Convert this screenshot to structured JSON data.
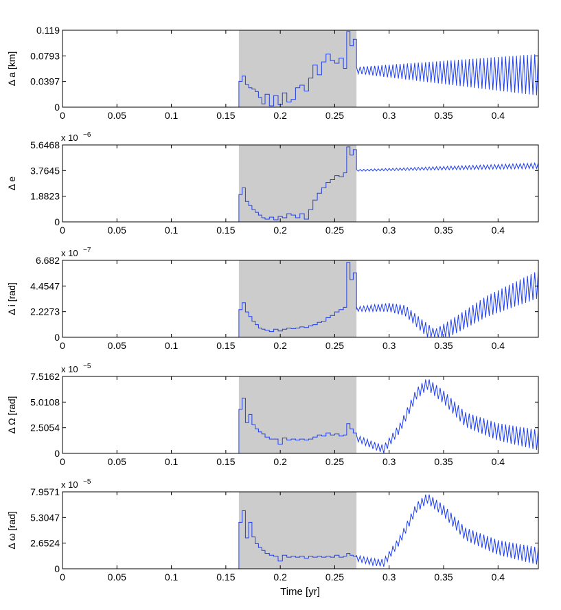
{
  "figure": {
    "xlabel": "Time [yr]",
    "shaded_interval": [
      0.162,
      0.27
    ],
    "shade_color": "#cccccc",
    "line_color": "#1f3ff0",
    "xlim": [
      0,
      0.437
    ],
    "xticks": [
      0,
      0.05,
      0.1,
      0.15,
      0.2,
      0.25,
      0.3,
      0.35,
      0.4
    ],
    "xtick_labels": [
      "0",
      "0.05",
      "0.1",
      "0.15",
      "0.2",
      "0.25",
      "0.3",
      "0.35",
      "0.4"
    ]
  },
  "chart_data": [
    {
      "type": "line",
      "ylabel": "Δ a [km]",
      "exponent_label": "",
      "ylim": [
        0,
        0.119
      ],
      "yticks": [
        0,
        0.0397,
        0.0793,
        0.119
      ],
      "ytick_labels": [
        "0",
        "0.0397",
        "0.0793",
        "0.119"
      ],
      "x": [
        0.162,
        0.165,
        0.168,
        0.171,
        0.174,
        0.177,
        0.18,
        0.183,
        0.186,
        0.19,
        0.194,
        0.198,
        0.202,
        0.206,
        0.21,
        0.214,
        0.218,
        0.222,
        0.226,
        0.23,
        0.234,
        0.238,
        0.242,
        0.246,
        0.25,
        0.254,
        0.258,
        0.261,
        0.264,
        0.267,
        0.27
      ],
      "y": [
        0.04,
        0.048,
        0.035,
        0.03,
        0.028,
        0.024,
        0.015,
        0.005,
        0.02,
        0.002,
        0.018,
        0.004,
        0.022,
        0.008,
        0.012,
        0.03,
        0.034,
        0.025,
        0.045,
        0.065,
        0.05,
        0.07,
        0.082,
        0.072,
        0.068,
        0.076,
        0.06,
        0.117,
        0.095,
        0.105,
        0.08
      ],
      "oscillation": {
        "x_start": 0.27,
        "x_end": 0.437,
        "center_start": 0.057,
        "center_end": 0.05,
        "amp_start": 0.005,
        "amp_end": 0.032,
        "cycles": 50
      }
    },
    {
      "type": "line",
      "ylabel": "Δ e",
      "exponent_label": "x 10",
      "exponent_power": "−6",
      "ylim": [
        0,
        5.6468
      ],
      "yticks": [
        0,
        1.8823,
        3.7645,
        5.6468
      ],
      "ytick_labels": [
        "0",
        "1.8823",
        "3.7645",
        "5.6468"
      ],
      "x": [
        0.162,
        0.165,
        0.168,
        0.171,
        0.174,
        0.177,
        0.18,
        0.183,
        0.186,
        0.19,
        0.194,
        0.198,
        0.202,
        0.206,
        0.21,
        0.214,
        0.218,
        0.222,
        0.226,
        0.23,
        0.234,
        0.238,
        0.242,
        0.246,
        0.25,
        0.254,
        0.258,
        0.261,
        0.264,
        0.267,
        0.27
      ],
      "y": [
        2.0,
        2.5,
        1.5,
        1.2,
        0.9,
        0.7,
        0.5,
        0.3,
        0.2,
        0.35,
        0.15,
        0.4,
        0.3,
        0.6,
        0.5,
        0.3,
        0.6,
        0.2,
        0.9,
        1.6,
        2.1,
        2.5,
        2.9,
        3.1,
        3.4,
        3.3,
        3.6,
        5.5,
        4.9,
        5.3,
        3.8
      ],
      "oscillation": {
        "x_start": 0.27,
        "x_end": 0.437,
        "center_start": 3.78,
        "center_end": 4.12,
        "amp_start": 0.06,
        "amp_end": 0.2,
        "cycles": 50
      }
    },
    {
      "type": "line",
      "ylabel": "Δ i [rad]",
      "exponent_label": "x 10",
      "exponent_power": "−7",
      "ylim": [
        0,
        6.682
      ],
      "yticks": [
        0,
        2.2273,
        4.4547,
        6.682
      ],
      "ytick_labels": [
        "0",
        "2.2273",
        "4.4547",
        "6.682"
      ],
      "x": [
        0.162,
        0.165,
        0.168,
        0.171,
        0.174,
        0.177,
        0.18,
        0.183,
        0.186,
        0.19,
        0.194,
        0.198,
        0.202,
        0.206,
        0.21,
        0.214,
        0.218,
        0.222,
        0.226,
        0.23,
        0.234,
        0.238,
        0.242,
        0.246,
        0.25,
        0.254,
        0.258,
        0.261,
        0.264,
        0.267,
        0.27
      ],
      "y": [
        2.4,
        3.0,
        2.2,
        1.8,
        1.4,
        1.1,
        0.8,
        0.7,
        0.6,
        0.5,
        0.7,
        0.55,
        0.7,
        0.8,
        0.75,
        0.8,
        0.9,
        0.85,
        1.0,
        1.1,
        1.3,
        1.4,
        1.7,
        1.9,
        2.2,
        2.4,
        2.6,
        6.5,
        5.0,
        5.6,
        2.4
      ],
      "oscillation": {
        "x_start": 0.27,
        "x_end": 0.437,
        "points": [
          [
            0.27,
            2.45
          ],
          [
            0.3,
            2.6
          ],
          [
            0.315,
            2.3
          ],
          [
            0.33,
            1.0
          ],
          [
            0.342,
            0.05
          ],
          [
            0.36,
            1.0
          ],
          [
            0.39,
            2.7
          ],
          [
            0.437,
            4.6
          ]
        ],
        "amp_start": 0.2,
        "amp_end": 1.2,
        "cycles": 50
      }
    },
    {
      "type": "line",
      "ylabel": "Δ Ω [rad]",
      "exponent_label": "x 10",
      "exponent_power": "−5",
      "ylim": [
        0,
        7.5162
      ],
      "yticks": [
        0,
        2.5054,
        5.0108,
        7.5162
      ],
      "ytick_labels": [
        "0",
        "2.5054",
        "5.0108",
        "7.5162"
      ],
      "x": [
        0.162,
        0.165,
        0.168,
        0.171,
        0.174,
        0.177,
        0.18,
        0.183,
        0.186,
        0.19,
        0.194,
        0.198,
        0.202,
        0.206,
        0.21,
        0.214,
        0.218,
        0.222,
        0.226,
        0.23,
        0.234,
        0.238,
        0.242,
        0.246,
        0.25,
        0.254,
        0.258,
        0.261,
        0.264,
        0.267,
        0.27
      ],
      "y": [
        4.3,
        5.4,
        3.0,
        3.8,
        2.8,
        2.4,
        2.1,
        1.9,
        1.6,
        1.4,
        1.4,
        0.9,
        1.5,
        1.3,
        1.4,
        1.3,
        1.4,
        1.3,
        1.4,
        1.6,
        1.8,
        1.7,
        2.0,
        1.8,
        1.9,
        1.7,
        1.8,
        2.9,
        2.4,
        2.0,
        1.8
      ],
      "oscillation": {
        "x_start": 0.27,
        "x_end": 0.437,
        "points": [
          [
            0.27,
            1.5
          ],
          [
            0.285,
            0.8
          ],
          [
            0.295,
            0.4
          ],
          [
            0.31,
            2.5
          ],
          [
            0.325,
            5.8
          ],
          [
            0.335,
            6.8
          ],
          [
            0.35,
            5.5
          ],
          [
            0.37,
            3.3
          ],
          [
            0.4,
            2.1
          ],
          [
            0.437,
            1.3
          ]
        ],
        "amp_start": 0.3,
        "amp_end": 1.0,
        "cycles": 50
      }
    },
    {
      "type": "line",
      "ylabel": "Δ ω [rad]",
      "exponent_label": "x 10",
      "exponent_power": "−5",
      "ylim": [
        0,
        7.9571
      ],
      "yticks": [
        0,
        2.6524,
        5.3047,
        7.9571
      ],
      "ytick_labels": [
        "0",
        "2.6524",
        "5.3047",
        "7.9571"
      ],
      "x": [
        0.162,
        0.165,
        0.168,
        0.171,
        0.174,
        0.177,
        0.18,
        0.183,
        0.186,
        0.19,
        0.194,
        0.198,
        0.202,
        0.206,
        0.21,
        0.214,
        0.218,
        0.222,
        0.226,
        0.23,
        0.234,
        0.238,
        0.242,
        0.246,
        0.25,
        0.254,
        0.258,
        0.261,
        0.264,
        0.267,
        0.27
      ],
      "y": [
        4.8,
        6.0,
        3.2,
        4.8,
        3.3,
        2.6,
        2.2,
        1.9,
        1.6,
        1.4,
        1.3,
        0.8,
        1.4,
        1.2,
        1.3,
        1.2,
        1.3,
        1.1,
        1.3,
        1.2,
        1.3,
        1.2,
        1.3,
        1.2,
        1.4,
        1.2,
        1.3,
        1.6,
        1.4,
        1.3,
        1.2
      ],
      "oscillation": {
        "x_start": 0.27,
        "x_end": 0.437,
        "points": [
          [
            0.27,
            1.1
          ],
          [
            0.285,
            0.7
          ],
          [
            0.295,
            0.6
          ],
          [
            0.31,
            3.0
          ],
          [
            0.325,
            6.3
          ],
          [
            0.335,
            7.3
          ],
          [
            0.35,
            6.0
          ],
          [
            0.37,
            3.6
          ],
          [
            0.4,
            2.2
          ],
          [
            0.437,
            1.3
          ]
        ],
        "amp_start": 0.3,
        "amp_end": 0.9,
        "cycles": 50
      }
    }
  ]
}
